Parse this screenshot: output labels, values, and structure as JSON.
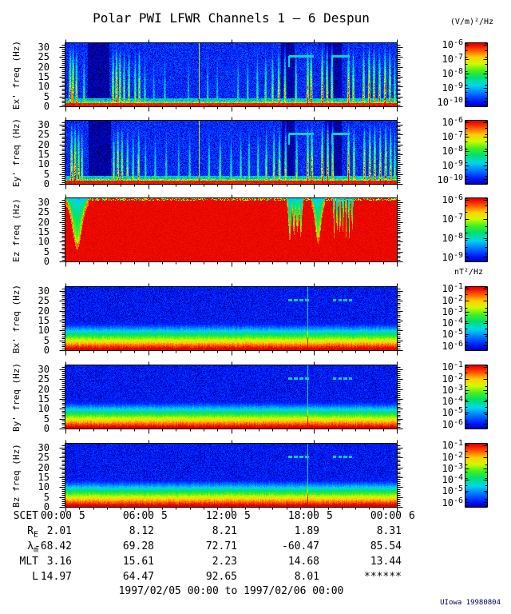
{
  "title": "Polar PWI LFWR Channels 1 — 6 Despun",
  "units": {
    "efield": "(V/m)²/Hz",
    "bfield": "nT²/Hz"
  },
  "footer_date": "1997/02/05 00:00 to 1997/02/06 00:00",
  "credit": "UIowa 19980804",
  "x_axis": {
    "label": "SCET",
    "major_ticks": [
      {
        "time": "00:00",
        "day": "5",
        "hour": 0
      },
      {
        "time": "06:00",
        "day": "5",
        "hour": 6
      },
      {
        "time": "12:00",
        "day": "5",
        "hour": 12
      },
      {
        "time": "18:00",
        "day": "5",
        "hour": 18
      },
      {
        "time": "00:00",
        "day": "6",
        "hour": 24
      }
    ]
  },
  "ephemeris": [
    {
      "base": "R",
      "sub": "E",
      "values": [
        "2.01",
        "8.12",
        "8.21",
        "1.89",
        "8.31"
      ]
    },
    {
      "base": "λ",
      "sub": "m",
      "values": [
        "-68.42",
        "69.28",
        "72.71",
        "-60.47",
        "85.54"
      ]
    },
    {
      "base": "MLT",
      "sub": "",
      "values": [
        "3.16",
        "15.61",
        "2.23",
        "14.68",
        "13.44"
      ]
    },
    {
      "base": "L",
      "sub": "",
      "values": [
        "14.97",
        "64.47",
        "92.65",
        "8.01",
        "******"
      ]
    }
  ],
  "chart_data": {
    "type": "heatmap",
    "subtype": "spectrogram",
    "time_range": [
      "1997/02/05 00:00",
      "1997/02/06 00:00"
    ],
    "time_span_hours": 24,
    "freq_axis": {
      "label": "freq (Hz)",
      "min": 0,
      "max": 32,
      "ticks": [
        30,
        25,
        20,
        15,
        10,
        5,
        0
      ]
    },
    "colormap": "rainbow (blue=low, red=high)",
    "panels": [
      {
        "id": "ex",
        "ylabel": "Ex' freq (Hz)",
        "component": "Ex'",
        "units": "(V/m)²/Hz",
        "style": "E",
        "seed": 101,
        "scale_exponents": [
          "-6",
          "-7",
          "-8",
          "-9",
          "-10"
        ],
        "description": "Blue noisy background, red band below ~2 Hz, many broadband vertical burst streaks, cyan interference line near 25 Hz between ~16-21 h",
        "features": {
          "burst_hours": [
            [
              0.35,
              0.95
            ],
            [
              0.55,
              1.0
            ],
            [
              0.8,
              0.8
            ],
            [
              1.35,
              0.55
            ],
            [
              3.45,
              0.85
            ],
            [
              3.7,
              1.0
            ],
            [
              3.95,
              0.9
            ],
            [
              4.25,
              0.7
            ],
            [
              4.6,
              0.75
            ],
            [
              5.05,
              0.65
            ],
            [
              5.35,
              0.8
            ],
            [
              5.75,
              0.5
            ],
            [
              6.4,
              0.4
            ],
            [
              7.2,
              0.45
            ],
            [
              8.9,
              0.4
            ],
            [
              10.3,
              0.45
            ],
            [
              11.0,
              0.4
            ],
            [
              12.5,
              0.45
            ],
            [
              13.2,
              0.5
            ],
            [
              13.9,
              0.55
            ],
            [
              14.5,
              0.65
            ],
            [
              15.0,
              0.7
            ],
            [
              15.45,
              0.8
            ],
            [
              15.9,
              0.7
            ],
            [
              16.7,
              0.6
            ],
            [
              17.55,
              0.95
            ],
            [
              17.8,
              1.0
            ],
            [
              18.6,
              1.0
            ],
            [
              18.95,
              0.85
            ],
            [
              19.3,
              0.8
            ],
            [
              20.5,
              1.0
            ],
            [
              20.85,
              0.8
            ],
            [
              21.6,
              0.85
            ],
            [
              22.0,
              1.0
            ],
            [
              22.35,
              0.95
            ],
            [
              22.75,
              0.85
            ],
            [
              23.15,
              1.0
            ],
            [
              23.5,
              0.9
            ],
            [
              23.85,
              0.6
            ]
          ],
          "dark_hours": [
            [
              1.6,
              3.2
            ],
            [
              15.6,
              16.6
            ],
            [
              18.8,
              20.0
            ]
          ],
          "interference_line_hour": 9.7,
          "cyan_line_freq_hz": 25.5,
          "cyan_segments_hours": [
            [
              16.2,
              18.0
            ],
            [
              19.3,
              20.6
            ]
          ]
        }
      },
      {
        "id": "ey",
        "ylabel": "Ey' freq (Hz)",
        "component": "Ey'",
        "units": "(V/m)²/Hz",
        "style": "E",
        "seed": 202,
        "scale_exponents": [
          "-6",
          "-7",
          "-8",
          "-9",
          "-10"
        ],
        "description": "Similar to Ex' with strong red burst near start of day and dense streaks",
        "features": {
          "burst_hours": [
            [
              0.45,
              1.0
            ],
            [
              0.7,
              1.0
            ],
            [
              0.95,
              0.9
            ],
            [
              1.2,
              0.7
            ],
            [
              3.5,
              0.7
            ],
            [
              3.8,
              0.9
            ],
            [
              4.1,
              0.8
            ],
            [
              4.5,
              0.7
            ],
            [
              4.9,
              0.6
            ],
            [
              5.3,
              0.75
            ],
            [
              5.8,
              0.5
            ],
            [
              6.5,
              0.5
            ],
            [
              7.3,
              0.5
            ],
            [
              8.2,
              0.45
            ],
            [
              9.0,
              0.5
            ],
            [
              10.4,
              0.55
            ],
            [
              11.2,
              0.6
            ],
            [
              12.0,
              0.5
            ],
            [
              12.7,
              0.55
            ],
            [
              13.3,
              0.6
            ],
            [
              13.95,
              0.6
            ],
            [
              14.55,
              0.7
            ],
            [
              15.1,
              0.75
            ],
            [
              15.5,
              0.8
            ],
            [
              15.95,
              0.7
            ],
            [
              16.75,
              0.65
            ],
            [
              17.55,
              0.95
            ],
            [
              17.85,
              1.0
            ],
            [
              18.6,
              1.0
            ],
            [
              19.0,
              0.9
            ],
            [
              19.35,
              0.8
            ],
            [
              20.5,
              1.0
            ],
            [
              20.9,
              0.85
            ],
            [
              21.65,
              0.9
            ],
            [
              22.05,
              1.0
            ],
            [
              22.4,
              0.95
            ],
            [
              22.8,
              0.9
            ],
            [
              23.2,
              1.0
            ],
            [
              23.55,
              0.9
            ],
            [
              23.85,
              0.65
            ]
          ],
          "dark_hours": [
            [
              1.7,
              3.3
            ],
            [
              15.7,
              16.6
            ],
            [
              18.8,
              20.0
            ]
          ],
          "interference_line_hour": 9.7,
          "cyan_line_freq_hz": 25.5,
          "cyan_segments_hours": [
            [
              16.2,
              18.0
            ],
            [
              19.3,
              20.6
            ]
          ]
        }
      },
      {
        "id": "ez",
        "ylabel": "Ez freq (Hz)",
        "component": "Ez",
        "units": "(V/m)²/Hz",
        "style": "Z",
        "seed": 303,
        "scale_exponents": [
          "-6",
          "-7",
          "-8",
          "-9"
        ],
        "description": "Saturated red across entire panel with green/cyan notches dipping from the top near 0.5-1.5 h, 16-17 h, 18-18.7 h and thin vertical stripes 19.4-20.8 h",
        "features": {
          "notches": [
            {
              "hour": 0.85,
              "width": 0.45,
              "depth_hz": 23
            },
            {
              "hour": 16.25,
              "width": 0.12,
              "depth_hz": 19
            },
            {
              "hour": 16.55,
              "width": 0.1,
              "depth_hz": 16
            },
            {
              "hour": 16.8,
              "width": 0.12,
              "depth_hz": 14
            },
            {
              "hour": 17.05,
              "width": 0.09,
              "depth_hz": 17
            },
            {
              "hour": 18.3,
              "width": 0.28,
              "depth_hz": 20
            },
            {
              "hour": 19.45,
              "width": 0.05,
              "depth_hz": 18
            },
            {
              "hour": 19.67,
              "width": 0.05,
              "depth_hz": 16
            },
            {
              "hour": 19.89,
              "width": 0.05,
              "depth_hz": 18
            },
            {
              "hour": 20.11,
              "width": 0.05,
              "depth_hz": 15
            },
            {
              "hour": 20.33,
              "width": 0.05,
              "depth_hz": 17
            },
            {
              "hour": 20.55,
              "width": 0.05,
              "depth_hz": 18
            },
            {
              "hour": 20.77,
              "width": 0.05,
              "depth_hz": 15
            }
          ]
        }
      },
      {
        "id": "bx",
        "ylabel": "Bx' freq (Hz)",
        "component": "Bx'",
        "units": "nT²/Hz",
        "style": "B",
        "seed": 404,
        "scale_exponents": [
          "-1",
          "-2",
          "-3",
          "-4",
          "-5",
          "-6"
        ],
        "description": "Smooth layered gradient: red below ~2 Hz through yellow/green/cyan to blue above ~14 Hz; cyan dashed line at 25 Hz near 16-21 h and faint vertical artifact at ~17.5 h",
        "features": {
          "cyan_segments_hours": [
            [
              16.15,
              17.75
            ],
            [
              19.35,
              20.75
            ]
          ],
          "cyan_line_freq_hz": 25.5,
          "interference_line_hour": 17.55
        }
      },
      {
        "id": "by",
        "ylabel": "By' freq (Hz)",
        "component": "By'",
        "units": "nT²/Hz",
        "style": "B",
        "seed": 505,
        "scale_exponents": [
          "-1",
          "-2",
          "-3",
          "-4",
          "-5",
          "-6"
        ],
        "description": "Same layered gradient as Bx' with cyan 25 Hz dashes and vertical artifact at ~17.5 h",
        "features": {
          "cyan_segments_hours": [
            [
              16.15,
              17.75
            ],
            [
              19.35,
              20.75
            ]
          ],
          "cyan_line_freq_hz": 25.5,
          "interference_line_hour": 17.55
        }
      },
      {
        "id": "bz",
        "ylabel": "Bz freq (Hz)",
        "component": "Bz",
        "units": "nT²/Hz",
        "style": "B",
        "seed": 606,
        "scale_exponents": [
          "-1",
          "-2",
          "-3",
          "-4",
          "-5",
          "-6"
        ],
        "description": "Same layered gradient as Bx'/By' with cyan 25 Hz dashes and vertical artifact at ~17.5 h",
        "features": {
          "cyan_segments_hours": [
            [
              16.15,
              17.75
            ],
            [
              19.35,
              20.75
            ]
          ],
          "cyan_line_freq_hz": 25.5,
          "interference_line_hour": 17.55
        }
      }
    ]
  }
}
